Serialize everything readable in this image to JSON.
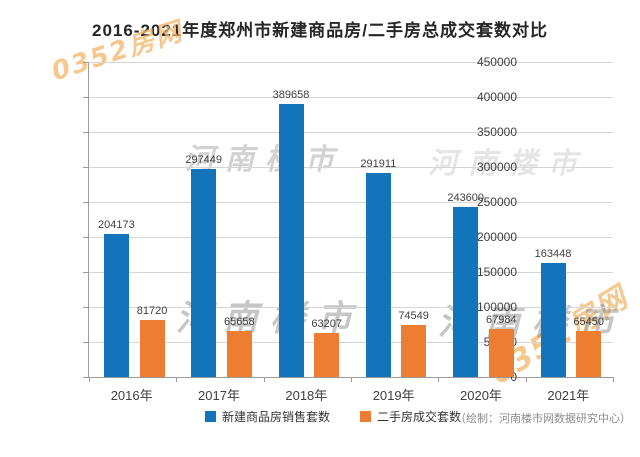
{
  "title": "2016-2021年度郑州市新建商品房/二手房总成交套数对比",
  "chart_data": {
    "type": "bar",
    "categories": [
      "2016年",
      "2017年",
      "2018年",
      "2019年",
      "2020年",
      "2021年"
    ],
    "series": [
      {
        "name": "新建商品房销售套数",
        "key": "new-homes",
        "color": "#1275BC",
        "values": [
          204173,
          297449,
          389658,
          291911,
          243600,
          163448
        ]
      },
      {
        "name": "二手房成交套数",
        "key": "resale-homes",
        "color": "#ED7D31",
        "values": [
          81720,
          65658,
          63207,
          74549,
          67984,
          65450
        ]
      }
    ],
    "ylim": [
      0,
      450000
    ],
    "ytick_step": 50000,
    "grid": true,
    "legend_position": "bottom",
    "data_labels": true
  },
  "credit": "（绘制：河南楼市网数据研究中心）",
  "watermarks": {
    "site": "0352房网",
    "brand": "河南楼市"
  },
  "colors": {
    "bar_blue": "#1275BC",
    "bar_orange": "#ED7D31",
    "gridline": "#D6D6D6",
    "axis": "#9B9B9B",
    "title_text": "#262626",
    "label_text": "#3F3F3F",
    "credit_text": "#8C8C8C",
    "watermark_site": "#F4B86E",
    "watermark_brand": "#7D7D7D"
  }
}
